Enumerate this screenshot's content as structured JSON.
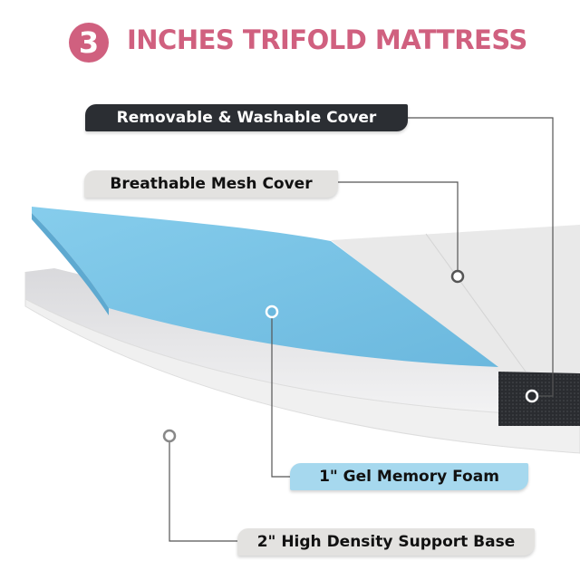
{
  "title": {
    "number": "3",
    "text": "INCHES TRIFOLD MATTRESS"
  },
  "labels": {
    "cover": "Removable & Washable Cover",
    "mesh": "Breathable Mesh Cover",
    "gel": "1\" Gel  Memory Foam",
    "base": "2\"  High Density Support Base"
  },
  "colors": {
    "accent": "#d0607f",
    "foam": "#7fc6e6",
    "cover_dark": "#2b2e33",
    "label_light": "#e3e2e0",
    "label_blue": "#a6d8ee"
  }
}
